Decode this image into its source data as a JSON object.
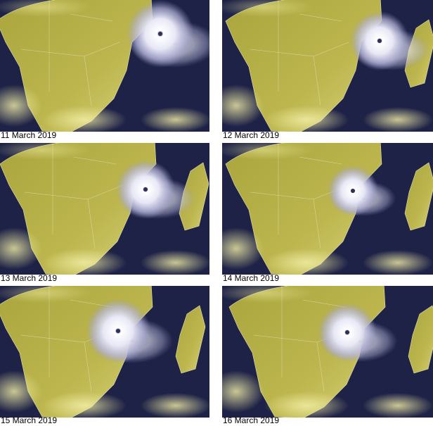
{
  "panels": [
    {
      "caption": "11 March 2019"
    },
    {
      "caption": "12 March 2019"
    },
    {
      "caption": "13 March 2019"
    },
    {
      "caption": "14 March 2019"
    },
    {
      "caption": "15 March 2019"
    },
    {
      "caption": "16 March 2019"
    }
  ]
}
